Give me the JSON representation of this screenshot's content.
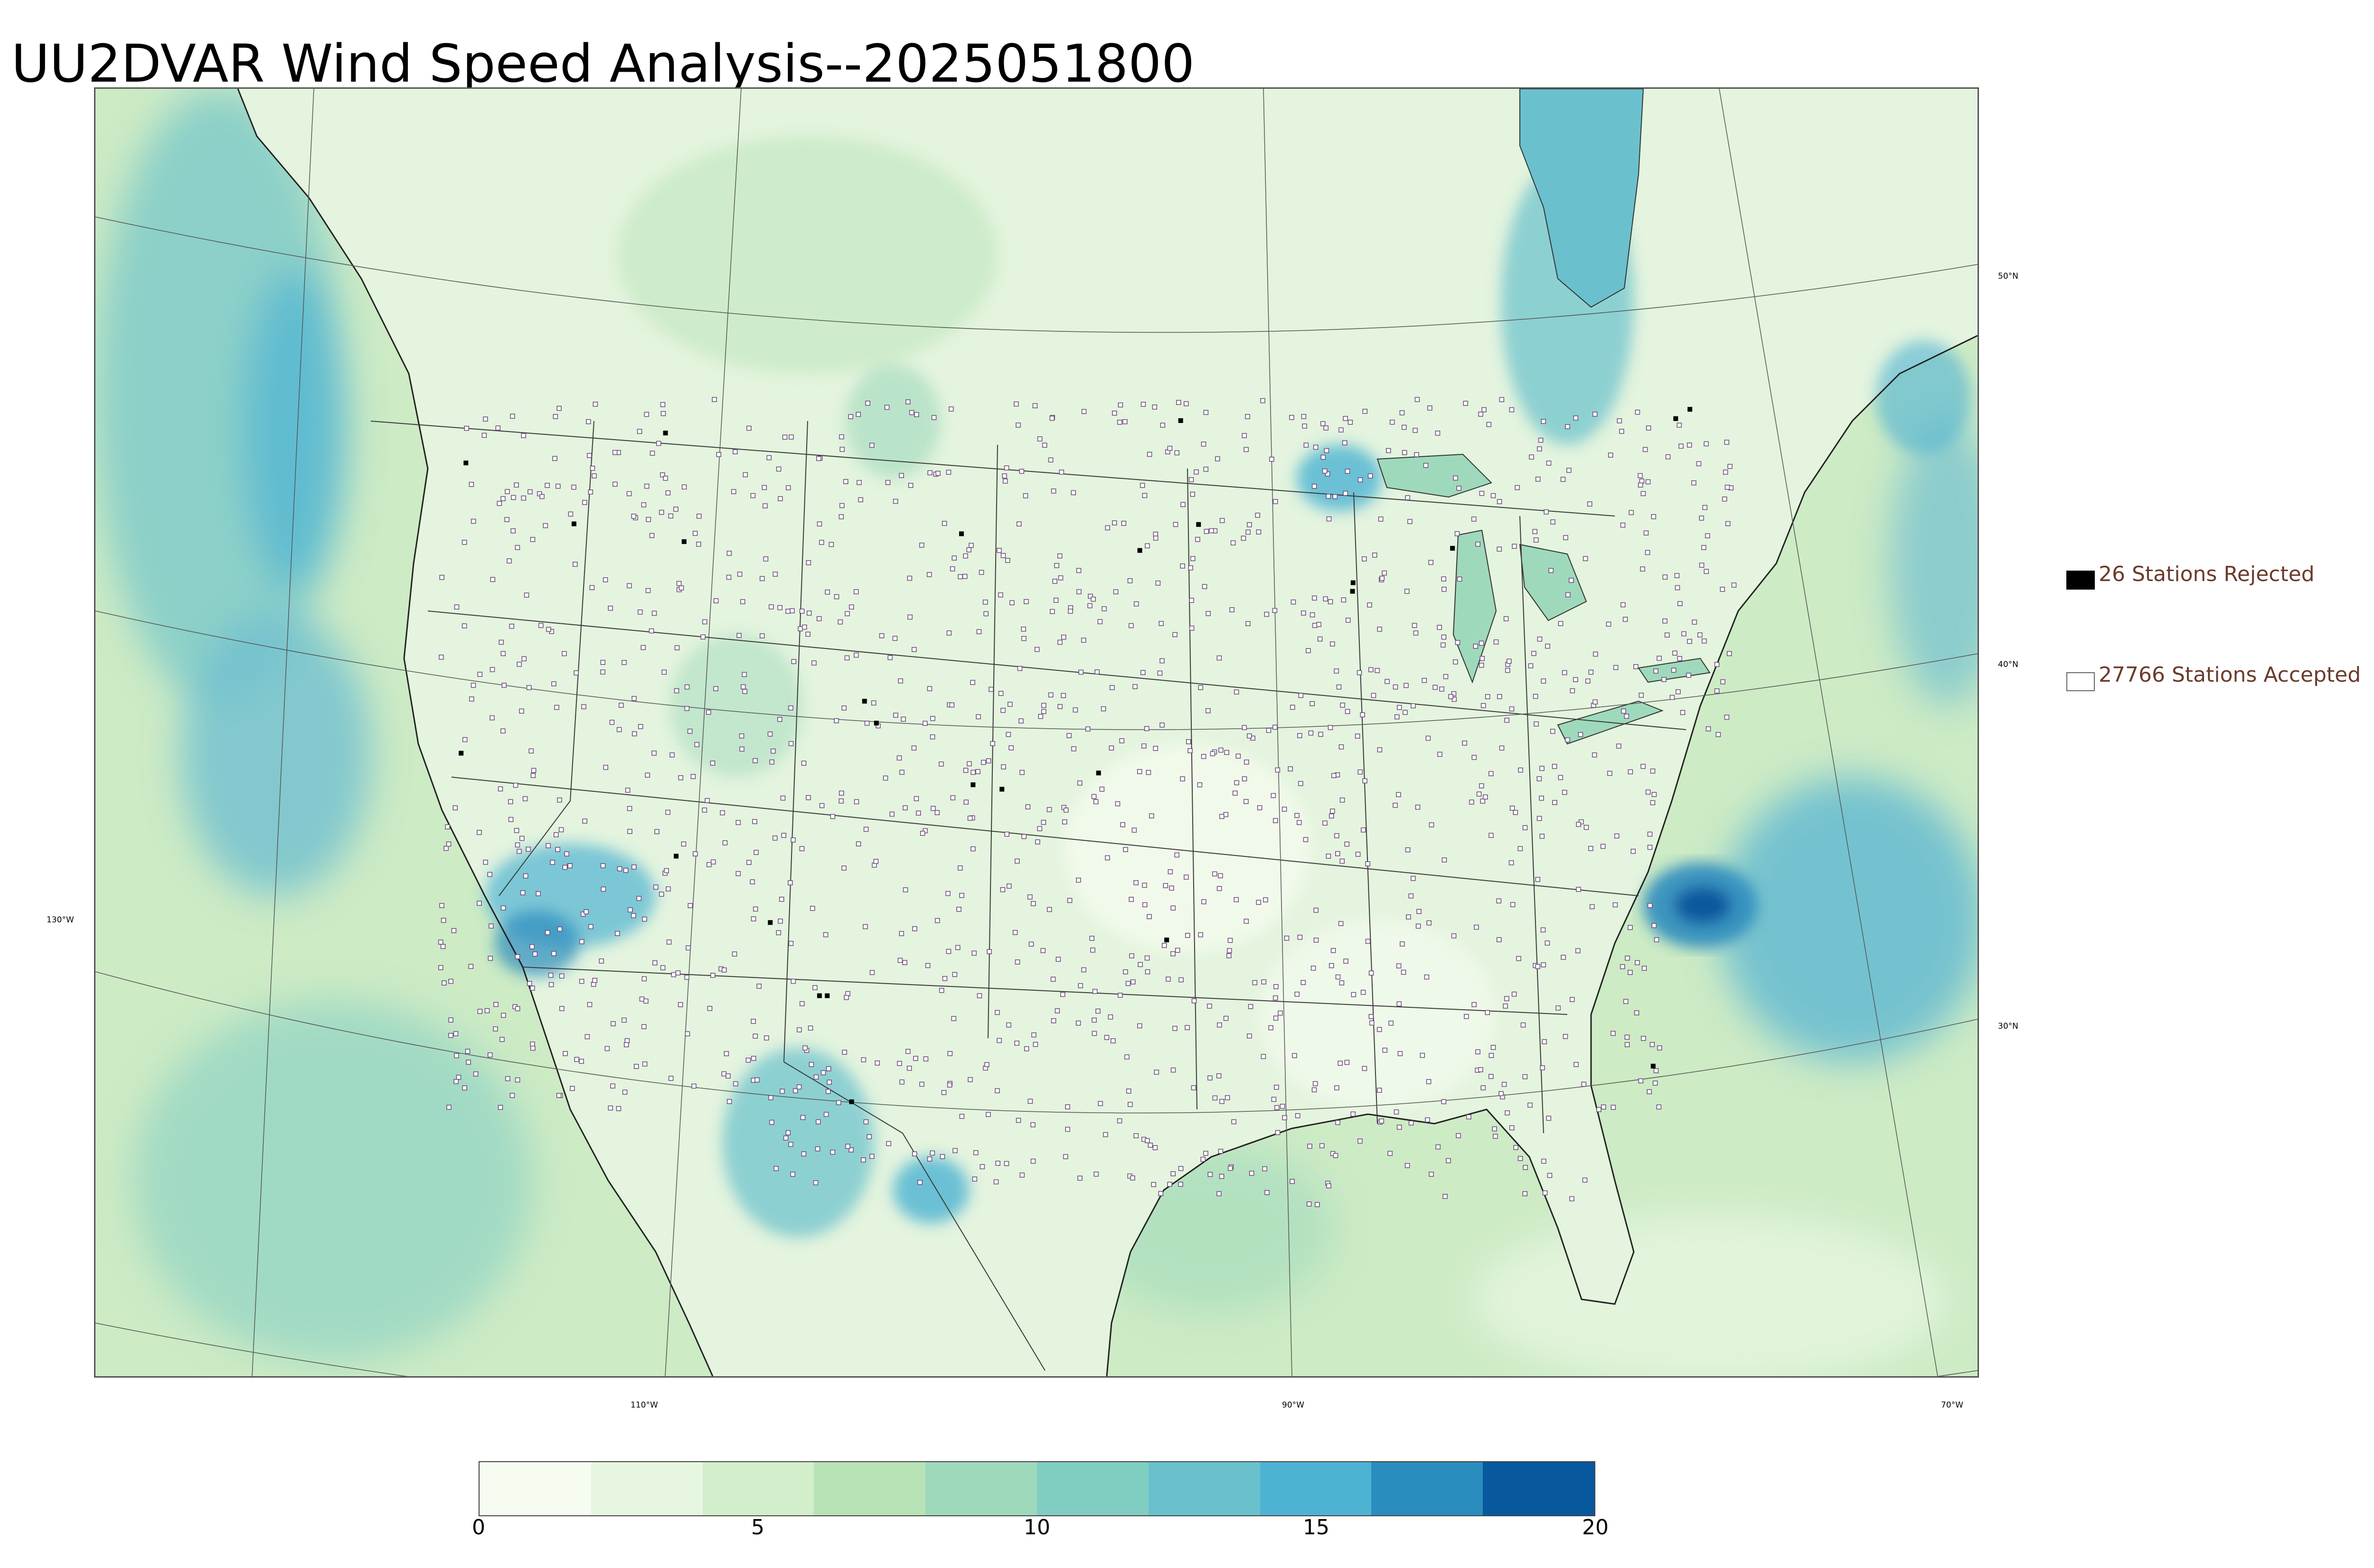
{
  "title": "UU2DVAR Wind Speed Analysis--2025051800",
  "legend": {
    "rejected_label": "26 Stations Rejected",
    "accepted_label": "27766 Stations Accepted",
    "rejected_color": "#000000",
    "accepted_color": "#ffffff"
  },
  "latitude_labels": [
    "50°N",
    "40°N",
    "30°N"
  ],
  "longitude_labels": [
    "130°W",
    "110°W",
    "90°W",
    "70°W"
  ],
  "colorbar": {
    "ticks": [
      "0",
      "5",
      "10",
      "15",
      "20"
    ],
    "range": [
      0,
      20
    ],
    "colors": [
      "#f7fcf0",
      "#e7f6e1",
      "#d2eecb",
      "#b7e3b7",
      "#9fd9bb",
      "#80cdc1",
      "#6ac1cd",
      "#4eb3d3",
      "#2b8cbe",
      "#08589e"
    ]
  },
  "map_colors": {
    "land_base": "#e4f4de",
    "ocean_base": "#cdebc5",
    "strong_wind": "#4eb3d3",
    "very_strong_wind": "#1a5f91",
    "boundary_line": "#3a3a3a"
  }
}
